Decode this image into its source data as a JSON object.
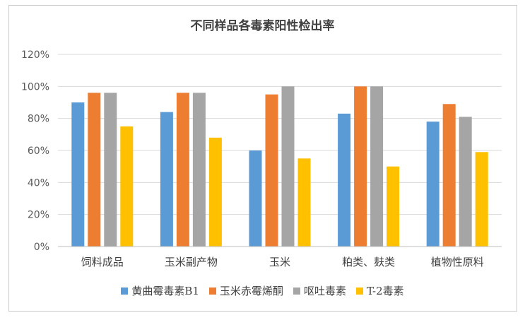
{
  "chart_data": {
    "type": "bar",
    "title": "不同样品各毒素阳性检出率",
    "xlabel": "",
    "ylabel": "",
    "categories": [
      "饲料成品",
      "玉米副产物",
      "玉米",
      "粕类、麸类",
      "植物性原料"
    ],
    "series": [
      {
        "name": "黄曲霉毒素B1",
        "color": "#5b9bd5",
        "values": [
          90,
          84,
          60,
          83,
          78
        ]
      },
      {
        "name": "玉米赤霉烯酮",
        "color": "#ed7d31",
        "values": [
          96,
          96,
          95,
          100,
          89
        ]
      },
      {
        "name": "呕吐毒素",
        "color": "#a5a5a5",
        "values": [
          96,
          96,
          100,
          100,
          81
        ]
      },
      {
        "name": "T-2毒素",
        "color": "#ffc000",
        "values": [
          75,
          68,
          55,
          50,
          59
        ]
      }
    ],
    "ylim": [
      0,
      120
    ],
    "yticks": [
      0,
      20,
      40,
      60,
      80,
      100,
      120
    ],
    "ytick_labels": [
      "0%",
      "20%",
      "40%",
      "60%",
      "80%",
      "100%",
      "120%"
    ],
    "grid": true,
    "legend_position": "bottom"
  },
  "colors": {
    "gridline": "#d9d9d9",
    "axis": "#bfbfbf"
  }
}
